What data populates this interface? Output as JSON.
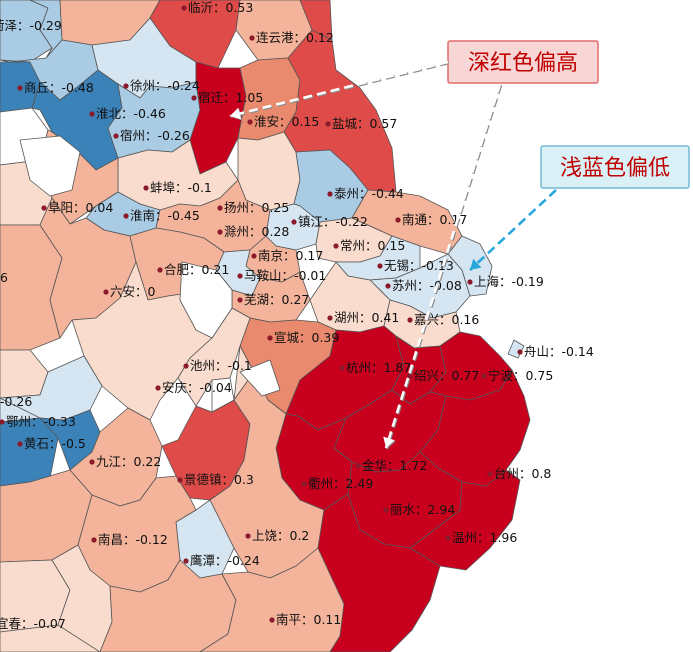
{
  "colors": {
    "dark_red": "#c8001e",
    "red": "#df4b48",
    "mid_red": "#e98a6e",
    "light_red": "#f4b49b",
    "pale_red": "#f9dccd",
    "pale_blue": "#d5e5f1",
    "light_blue": "#a9cbe3",
    "mid_blue": "#6ea7cf",
    "blue": "#3b82b9",
    "no_data": "#ffffff",
    "border": "#555555",
    "marker": "#8b1a2b"
  },
  "callouts": [
    {
      "id": "high",
      "text": "深红色偏高",
      "box_fill": "#f9d6d6",
      "box_stroke": "#e06b6b",
      "text_color": "#c00000",
      "arrow_color": "#ffffff"
    },
    {
      "id": "low",
      "text": "浅蓝色偏低",
      "box_fill": "#d9f0f7",
      "box_stroke": "#73b9d6",
      "text_color": "#c00000",
      "arrow_color": "#29a7dc"
    }
  ],
  "cities": [
    {
      "name": "菏泽",
      "value": "-0.29"
    },
    {
      "name": "临沂",
      "value": "0.53"
    },
    {
      "name": "连云港",
      "value": "0.12"
    },
    {
      "name": "商丘",
      "value": "-0.48"
    },
    {
      "name": "徐州",
      "value": "-0.24"
    },
    {
      "name": "宿迁",
      "value": "1.05"
    },
    {
      "name": "淮北",
      "value": "-0.46"
    },
    {
      "name": "宿州",
      "value": "-0.26"
    },
    {
      "name": "淮安",
      "value": "0.15"
    },
    {
      "name": "盐城",
      "value": "0.57"
    },
    {
      "name": "蚌埠",
      "value": "-0.1"
    },
    {
      "name": "阜阳",
      "value": "0.04"
    },
    {
      "name": "淮南",
      "value": "-0.45"
    },
    {
      "name": "扬州",
      "value": "0.25"
    },
    {
      "name": "泰州",
      "value": "-0.44"
    },
    {
      "name": "滁州",
      "value": "0.28"
    },
    {
      "name": "镇江",
      "value": "-0.22"
    },
    {
      "name": "南通",
      "value": "0.17"
    },
    {
      "name": "南京",
      "value": "0.17"
    },
    {
      "name": "常州",
      "value": "0.15"
    },
    {
      "name": "合肥",
      "value": "0.21"
    },
    {
      "name": "马鞍山",
      "value": "-0.01"
    },
    {
      "name": "无锡",
      "value": "-0.13"
    },
    {
      "name": "六安",
      "value": "0"
    },
    {
      "name": "苏州",
      "value": "-0.08"
    },
    {
      "name": "上海",
      "value": "-0.19"
    },
    {
      "name": "芜湖",
      "value": "0.27"
    },
    {
      "name": "湖州",
      "value": "0.41"
    },
    {
      "name": "嘉兴",
      "value": "0.16"
    },
    {
      "name": "宣城",
      "value": "0.39"
    },
    {
      "name": "舟山",
      "value": "-0.14"
    },
    {
      "name": "池州",
      "value": "-0.1"
    },
    {
      "name": "杭州",
      "value": "1.87"
    },
    {
      "name": "绍兴",
      "value": "0.77"
    },
    {
      "name": "宁波",
      "value": "0.75"
    },
    {
      "name": "安庆",
      "value": "-0.04"
    },
    {
      "name": "鄂州",
      "value": "-0.33"
    },
    {
      "name": "黄石",
      "value": "-0.5"
    },
    {
      "name": "九江",
      "value": "0.22"
    },
    {
      "name": "金华",
      "value": "1.72"
    },
    {
      "name": "景德镇",
      "value": "0.3"
    },
    {
      "name": "衢州",
      "value": "2.49"
    },
    {
      "name": "台州",
      "value": "0.8"
    },
    {
      "name": "丽水",
      "value": "2.94"
    },
    {
      "name": "上饶",
      "value": "0.2"
    },
    {
      "name": "温州",
      "value": "1.96"
    },
    {
      "name": "南昌",
      "value": "-0.12"
    },
    {
      "name": "鹰潭",
      "value": "-0.24"
    },
    {
      "name": "南平",
      "value": "0.11"
    },
    {
      "name": "宜春",
      "value": "-0.07"
    }
  ],
  "partial_labels": [
    {
      "id": "west-edge-1",
      "text": "-0.26"
    },
    {
      "id": "west-edge-2",
      "text": "6"
    }
  ]
}
